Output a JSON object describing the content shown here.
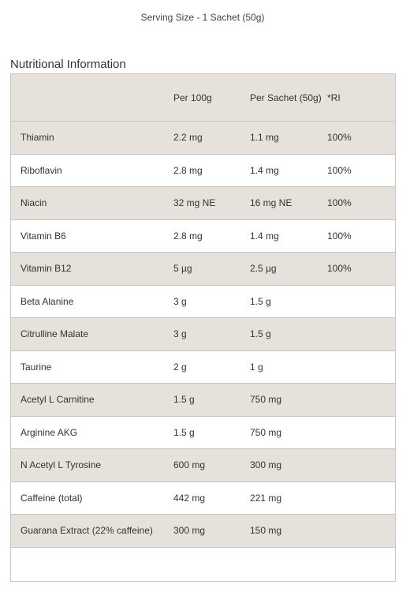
{
  "serving_size": "Serving Size - 1 Sachet (50g)",
  "section_title": "Nutritional Information",
  "columns": [
    "",
    "Per 100g",
    "Per Sachet (50g)",
    "*RI"
  ],
  "rows": [
    {
      "name": "Thiamin",
      "per100": "2.2 mg",
      "perSachet": "1.1 mg",
      "ri": "100%"
    },
    {
      "name": "Riboflavin",
      "per100": "2.8 mg",
      "perSachet": "1.4 mg",
      "ri": "100%"
    },
    {
      "name": "Niacin",
      "per100": "32 mg NE",
      "perSachet": "16 mg NE",
      "ri": "100%"
    },
    {
      "name": "Vitamin B6",
      "per100": "2.8 mg",
      "perSachet": "1.4 mg",
      "ri": "100%"
    },
    {
      "name": "Vitamin B12",
      "per100": "5 µg",
      "perSachet": "2.5 µg",
      "ri": "100%"
    },
    {
      "name": "Beta Alanine",
      "per100": "3 g",
      "perSachet": "1.5 g",
      "ri": ""
    },
    {
      "name": "Citrulline Malate",
      "per100": "3 g",
      "perSachet": "1.5 g",
      "ri": ""
    },
    {
      "name": "Taurine",
      "per100": "2 g",
      "perSachet": "1 g",
      "ri": ""
    },
    {
      "name": "Acetyl L Carnitine",
      "per100": "1.5 g",
      "perSachet": "750 mg",
      "ri": ""
    },
    {
      "name": "Arginine AKG",
      "per100": "1.5 g",
      "perSachet": "750 mg",
      "ri": ""
    },
    {
      "name": "N Acetyl L Tyrosine",
      "per100": "600 mg",
      "perSachet": "300 mg",
      "ri": ""
    },
    {
      "name": "Caffeine (total)",
      "per100": "442 mg",
      "perSachet": "221 mg",
      "ri": ""
    },
    {
      "name": "Guarana Extract (22% caffeine)",
      "per100": "300 mg",
      "perSachet": "150 mg",
      "ri": ""
    }
  ],
  "colors": {
    "shade": "#e6e1da",
    "border": "#c9c4bd",
    "text": "#333333"
  }
}
